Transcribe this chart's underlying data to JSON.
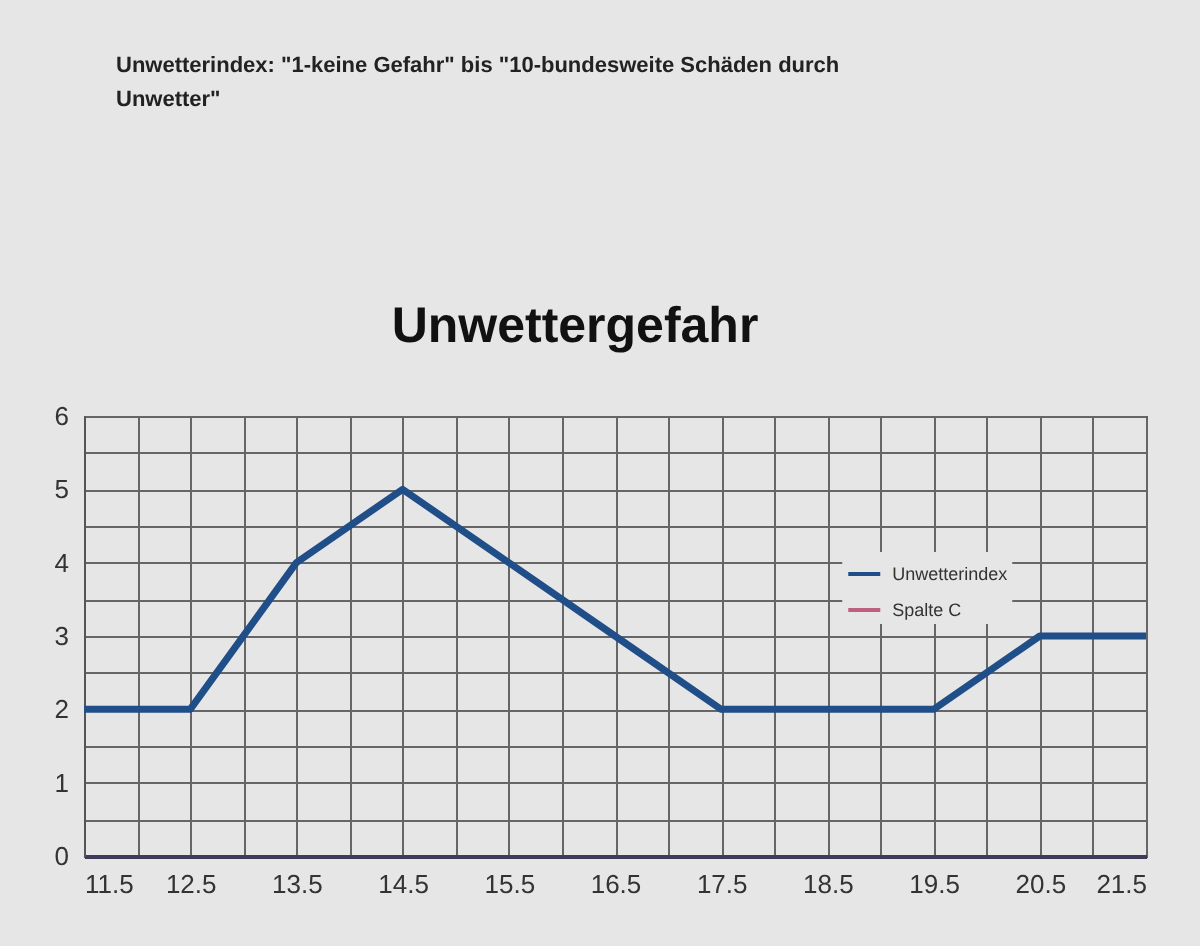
{
  "chart_data": {
    "type": "line",
    "title": "Unwettergefahr",
    "annotations": [
      "Unwetterindex: \"1-keine Gefahr\" bis \"10-bundesweite Schäden durch Unwetter\""
    ],
    "x": [
      11.5,
      12.5,
      13.5,
      14.5,
      15.5,
      16.5,
      17.5,
      18.5,
      19.5,
      20.5,
      21.5
    ],
    "series": [
      {
        "name": "Unwetterindex",
        "color": "#1f4e89",
        "values": [
          2,
          2,
          4,
          5,
          4,
          3,
          2,
          2,
          2,
          3,
          3
        ]
      },
      {
        "name": "Spalte C",
        "color": "#c0607f",
        "values": [
          null,
          null,
          null,
          null,
          null,
          null,
          null,
          null,
          null,
          null,
          null
        ]
      }
    ],
    "xlim": [
      11.5,
      21.5
    ],
    "xticks": [
      11.5,
      {
        "value": 12,
        "label": null
      },
      12.5,
      {
        "value": 13,
        "label": null
      },
      13.5,
      {
        "value": 14,
        "label": null
      },
      14.5,
      {
        "value": 15,
        "label": null
      },
      15.5,
      {
        "value": 16,
        "label": null
      },
      16.5,
      {
        "value": 17,
        "label": null
      },
      17.5,
      {
        "value": 18,
        "label": null
      },
      18.5,
      {
        "value": 19,
        "label": null
      },
      19.5,
      {
        "value": 20,
        "label": null
      },
      20.5,
      {
        "value": 21,
        "label": null
      },
      21.5
    ],
    "ylim": [
      0,
      6
    ],
    "yticks": [
      0,
      {
        "value": 0.5,
        "label": null
      },
      1,
      {
        "value": 1.5,
        "label": null
      },
      2,
      {
        "value": 2.5,
        "label": null
      },
      3,
      {
        "value": 3.5,
        "label": null
      },
      4,
      {
        "value": 4.5,
        "label": null
      },
      5,
      {
        "value": 5.5,
        "label": null
      },
      6
    ],
    "grid": true,
    "legend": "right"
  }
}
